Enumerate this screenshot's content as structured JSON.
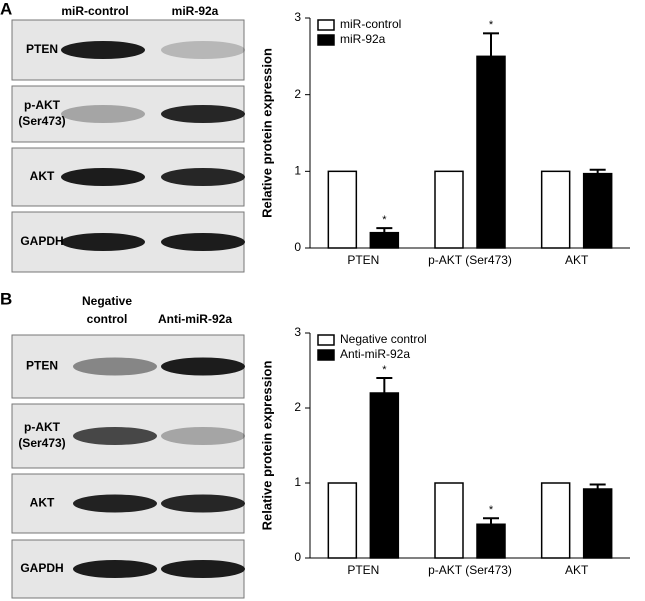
{
  "panels": [
    {
      "letter": "A",
      "columns": [
        [
          "miR-control"
        ],
        [
          "miR-92a"
        ]
      ],
      "rows": [
        [
          "PTEN"
        ],
        [
          "p-AKT",
          "(Ser473)"
        ],
        [
          "AKT"
        ],
        [
          "GAPDH"
        ]
      ]
    },
    {
      "letter": "B",
      "columns": [
        [
          "Negative",
          "control"
        ],
        [
          "Anti-miR-92a"
        ]
      ],
      "rows": [
        [
          "PTEN"
        ],
        [
          "p-AKT",
          "(Ser473)"
        ],
        [
          "AKT"
        ],
        [
          "GAPDH"
        ]
      ]
    }
  ],
  "chart_data": [
    {
      "type": "bar",
      "y_label": "Relative protein expression",
      "categories": [
        "PTEN",
        "p-AKT (Ser473)",
        "AKT"
      ],
      "series": [
        {
          "name": "miR-control",
          "color": "#ffffff",
          "values": [
            1,
            1,
            1
          ]
        },
        {
          "name": "miR-92a",
          "color": "#000000",
          "values": [
            0.2,
            2.5,
            0.97
          ],
          "errors": [
            0.06,
            0.3,
            0.05
          ],
          "significance": [
            "*",
            "*",
            null
          ]
        }
      ],
      "ylim": [
        0,
        3
      ],
      "yticks": [
        0,
        1,
        2,
        3
      ],
      "legend": "upper left"
    },
    {
      "type": "bar",
      "y_label": "Relative protein expression",
      "categories": [
        "PTEN",
        "p-AKT (Ser473)",
        "AKT"
      ],
      "series": [
        {
          "name": "Negative control",
          "color": "#ffffff",
          "values": [
            1,
            1,
            1
          ]
        },
        {
          "name": "Anti-miR-92a",
          "color": "#000000",
          "values": [
            2.2,
            0.45,
            0.92
          ],
          "errors": [
            0.2,
            0.08,
            0.06
          ],
          "significance": [
            "*",
            "*",
            null
          ]
        }
      ],
      "ylim": [
        0,
        3
      ],
      "yticks": [
        0,
        1,
        2,
        3
      ],
      "legend": "upper left"
    }
  ]
}
